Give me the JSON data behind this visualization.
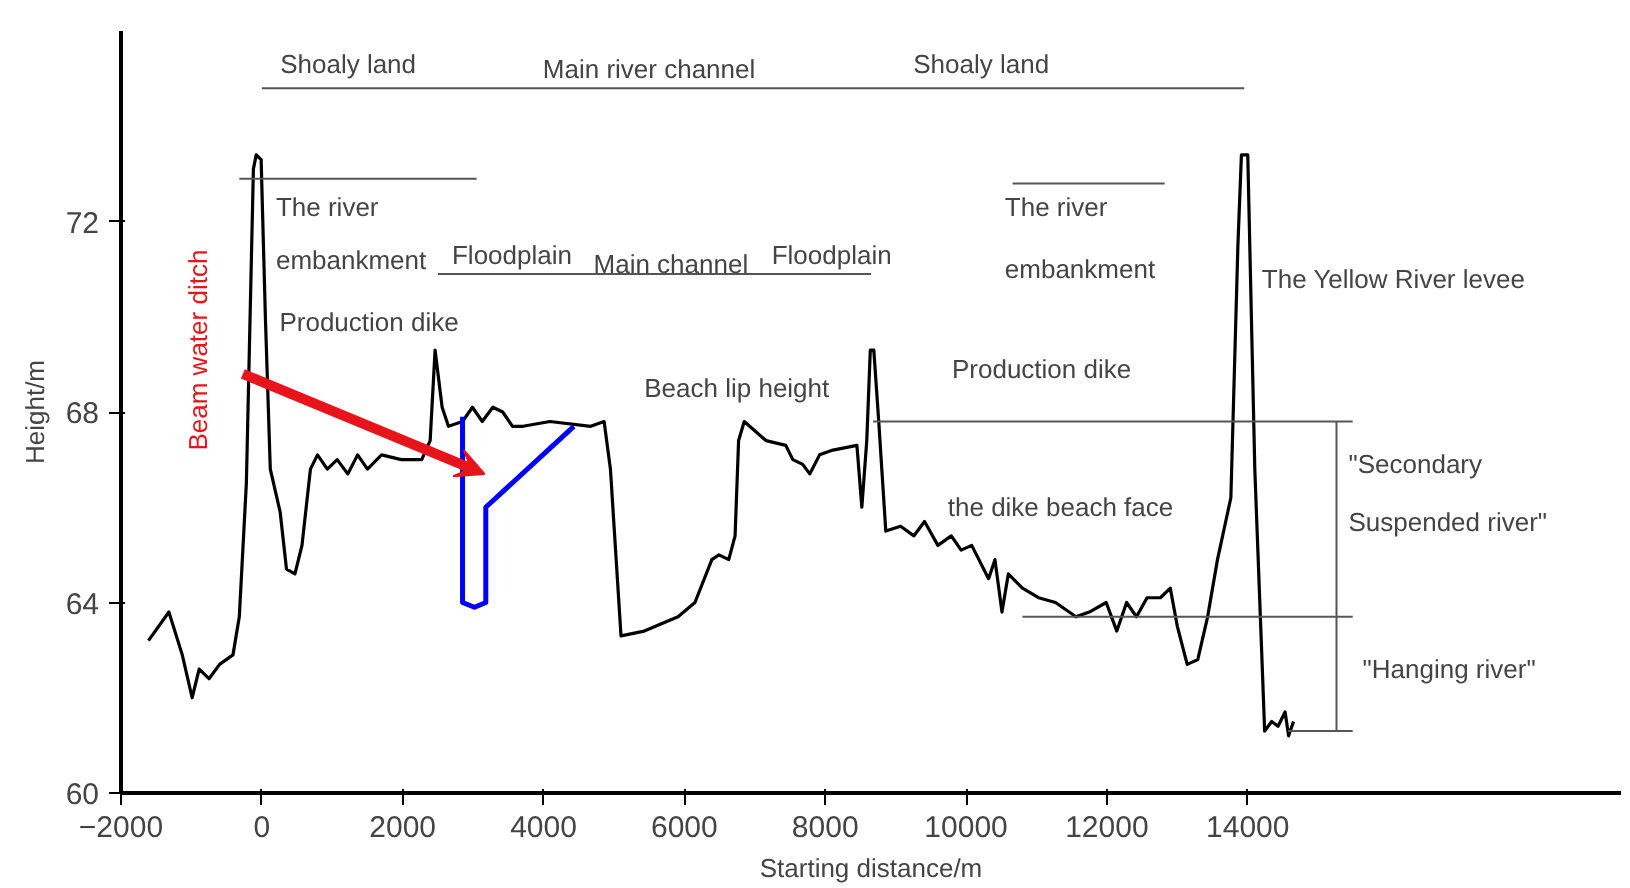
{
  "chart_data": {
    "type": "line",
    "xlabel": "Starting distance/m",
    "ylabel": "Height/m",
    "xlim": [
      -2000,
      19300
    ],
    "ylim": [
      60,
      76
    ],
    "xticks": [
      -2000,
      0,
      2000,
      4000,
      6000,
      8000,
      10000,
      12000,
      14000
    ],
    "yticks": [
      60,
      64,
      68,
      72
    ],
    "grid": false,
    "marker": "none",
    "line_style": "solid",
    "series": [
      {
        "color": "#000000",
        "x": [
          -1610,
          -1320,
          -1130,
          -990,
          -890,
          -750,
          -600,
          -410,
          -320,
          -220,
          -120,
          -80,
          -10,
          50,
          120,
          260,
          350,
          470,
          570,
          690,
          790,
          930,
          1070,
          1220,
          1360,
          1500,
          1700,
          1980,
          2270,
          2390,
          2460,
          2560,
          2650,
          2850,
          2990,
          3130,
          3280,
          3420,
          3560,
          3710,
          4090,
          4670,
          4860,
          4950,
          5100,
          5430,
          5910,
          6150,
          6390,
          6490,
          6630,
          6720,
          6770,
          6850,
          7160,
          7440,
          7540,
          7680,
          7780,
          7920,
          8110,
          8450,
          8520,
          8590,
          8640,
          8690,
          8760,
          8860,
          9070,
          9260,
          9410,
          9600,
          9790,
          9930,
          10080,
          10320,
          10410,
          10510,
          10600,
          10800,
          11030,
          11270,
          11560,
          11750,
          11990,
          12140,
          12280,
          12420,
          12570,
          12760,
          12900,
          13000,
          13140,
          13290,
          13430,
          13570,
          13760,
          13860,
          13910,
          14000,
          14100,
          14240,
          14340,
          14430,
          14530,
          14580,
          14650
        ],
        "values": [
          63.2,
          63.8,
          62.9,
          62.0,
          62.6,
          62.4,
          62.7,
          62.9,
          63.7,
          66.5,
          73.1,
          73.4,
          73.3,
          70.0,
          66.8,
          65.9,
          64.7,
          64.6,
          65.2,
          66.8,
          67.1,
          66.8,
          67.0,
          66.7,
          67.1,
          66.8,
          67.1,
          67.0,
          67.0,
          67.4,
          69.3,
          68.1,
          67.7,
          67.8,
          68.1,
          67.8,
          68.1,
          68.0,
          67.7,
          67.7,
          67.8,
          67.7,
          67.8,
          66.8,
          63.3,
          63.4,
          63.7,
          64.0,
          64.9,
          65.0,
          64.9,
          65.4,
          67.4,
          67.8,
          67.4,
          67.3,
          67.0,
          66.9,
          66.7,
          67.1,
          67.2,
          67.3,
          66.0,
          67.4,
          69.3,
          69.3,
          67.8,
          65.5,
          65.6,
          65.4,
          65.7,
          65.2,
          65.4,
          65.1,
          65.2,
          64.5,
          64.9,
          63.8,
          64.6,
          64.3,
          64.1,
          64.0,
          63.7,
          63.8,
          64.0,
          63.4,
          64.0,
          63.7,
          64.1,
          64.1,
          64.3,
          63.5,
          62.7,
          62.8,
          63.7,
          64.9,
          66.2,
          71.5,
          73.4,
          73.4,
          66.8,
          61.3,
          61.5,
          61.4,
          61.7,
          61.2,
          61.5
        ]
      },
      {
        "color": "#0000ff",
        "x": [
          2850,
          2850,
          3020,
          3180,
          3180,
          4430
        ],
        "values": [
          67.9,
          64.0,
          63.9,
          64.0,
          66.0,
          67.7
        ]
      },
      {
        "color": "#555555",
        "x": [
          0,
          13950
        ],
        "values": [
          74.8,
          74.8
        ]
      },
      {
        "color": "#555555",
        "x": [
          2500,
          8650
        ],
        "values": [
          70.9,
          70.9
        ]
      },
      {
        "color": "#555555",
        "x": [
          -320,
          3050
        ],
        "values": [
          72.9,
          72.9
        ]
      },
      {
        "color": "#555555",
        "x": [
          10660,
          12820
        ],
        "values": [
          72.8,
          72.8
        ]
      },
      {
        "color": "#555555",
        "x": [
          8680,
          15490
        ],
        "values": [
          67.8,
          67.8
        ]
      },
      {
        "color": "#555555",
        "x": [
          10800,
          15490
        ],
        "values": [
          63.7,
          63.7
        ]
      },
      {
        "color": "#555555",
        "x": [
          14570,
          15490
        ],
        "values": [
          61.3,
          61.3
        ]
      },
      {
        "color": "#555555",
        "x": [
          15260,
          15260
        ],
        "values": [
          61.3,
          67.8
        ]
      }
    ],
    "annotations": [
      "Shoaly land",
      "Main river channel",
      "Shoaly land",
      "The river",
      "embankment",
      "Floodplain",
      "Main channel",
      "Floodplain",
      "Production dike",
      "Beach lip height",
      "Production dike",
      "The river",
      "embankment",
      "The Yellow River levee",
      "the dike beach face",
      "\"Secondary",
      "Suspended river\"",
      "\"Hanging river\"",
      "Beam water ditch"
    ]
  }
}
